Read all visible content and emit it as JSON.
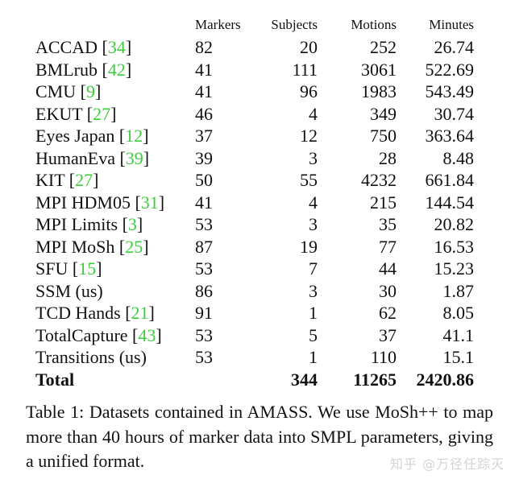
{
  "table": {
    "headers": {
      "name": "",
      "markers": "Markers",
      "subjects": "Subjects",
      "motions": "Motions",
      "minutes": "Minutes"
    },
    "rows": [
      {
        "name": "ACCAD",
        "cite": "34",
        "markers": "82",
        "subjects": "20",
        "motions": "252",
        "minutes": "26.74"
      },
      {
        "name": "BMLrub",
        "cite": "42",
        "markers": "41",
        "subjects": "111",
        "motions": "3061",
        "minutes": "522.69"
      },
      {
        "name": "CMU",
        "cite": "9",
        "markers": "41",
        "subjects": "96",
        "motions": "1983",
        "minutes": "543.49"
      },
      {
        "name": "EKUT",
        "cite": "27",
        "markers": "46",
        "subjects": "4",
        "motions": "349",
        "minutes": "30.74"
      },
      {
        "name": "Eyes Japan",
        "cite": "12",
        "markers": "37",
        "subjects": "12",
        "motions": "750",
        "minutes": "363.64"
      },
      {
        "name": "HumanEva",
        "cite": "39",
        "markers": "39",
        "subjects": "3",
        "motions": "28",
        "minutes": "8.48"
      },
      {
        "name": "KIT ",
        "cite": "27",
        "markers": "50",
        "subjects": "55",
        "motions": "4232",
        "minutes": "661.84"
      },
      {
        "name": "MPI HDM05",
        "cite": "31",
        "markers": "41",
        "subjects": "4",
        "motions": "215",
        "minutes": "144.54"
      },
      {
        "name": "MPI Limits",
        "cite": "3",
        "markers": "53",
        "subjects": "3",
        "motions": "35",
        "minutes": "20.82"
      },
      {
        "name": "MPI MoSh",
        "cite": "25",
        "markers": "87",
        "subjects": "19",
        "motions": "77",
        "minutes": "16.53"
      },
      {
        "name": "SFU",
        "cite": "15",
        "markers": "53",
        "subjects": "7",
        "motions": "44",
        "minutes": "15.23"
      },
      {
        "name": "SSM (us)",
        "cite": "",
        "markers": "86",
        "subjects": "3",
        "motions": "30",
        "minutes": "1.87"
      },
      {
        "name": "TCD Hands",
        "cite": "21",
        "markers": "91",
        "subjects": "1",
        "motions": "62",
        "minutes": "8.05"
      },
      {
        "name": "TotalCapture",
        "cite": "43",
        "markers": "53",
        "subjects": "5",
        "motions": "37",
        "minutes": "41.1"
      },
      {
        "name": "Transitions (us)",
        "cite": "",
        "markers": "53",
        "subjects": "1",
        "motions": "110",
        "minutes": "15.1"
      }
    ],
    "total": {
      "name": "Total",
      "markers": "",
      "subjects": "344",
      "motions": "11265",
      "minutes": "2420.86"
    }
  },
  "caption": "Table 1: Datasets contained in AMASS. We use MoSh++ to map more than 40 hours of marker data into SMPL parameters, giving a unified format.",
  "watermark": "知乎 @万径任踪灭",
  "colors": {
    "citation": "#3dce3d",
    "text": "#111111",
    "watermark": "#d4d4d4"
  }
}
